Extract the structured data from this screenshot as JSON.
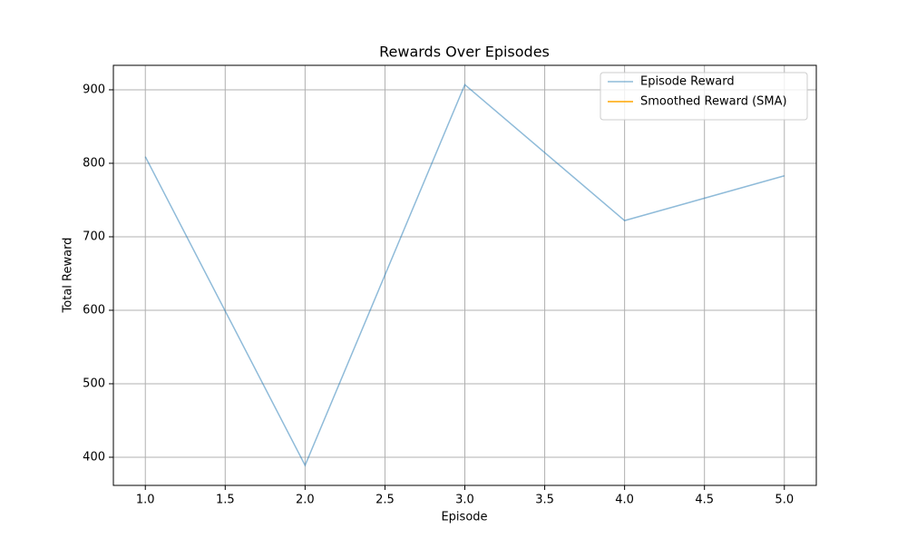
{
  "chart_data": {
    "type": "line",
    "title": "Rewards Over Episodes",
    "xlabel": "Episode",
    "ylabel": "Total Reward",
    "x": [
      1,
      2,
      3,
      4,
      5
    ],
    "series": [
      {
        "name": "Episode Reward",
        "color": "#1f77b4",
        "alpha": 0.5,
        "values": [
          809,
          389,
          907,
          722,
          783
        ]
      },
      {
        "name": "Smoothed Reward (SMA)",
        "color": "#ffa500",
        "values": [
          null,
          null,
          null,
          null,
          null
        ]
      }
    ],
    "xlim": [
      0.8,
      5.2
    ],
    "xticks": [
      {
        "value": 1,
        "label": "1.0"
      },
      1.5,
      {
        "value": 2,
        "label": "2.0"
      },
      2.5,
      {
        "value": 3,
        "label": "3.0"
      },
      3.5,
      {
        "value": 4,
        "label": "4.0"
      },
      4.5,
      {
        "value": 5,
        "label": "5.0"
      }
    ],
    "ylim": [
      361.7,
      933.3
    ],
    "yticks": [
      400,
      500,
      600,
      700,
      800,
      900
    ],
    "grid": true,
    "legend": "upper right"
  }
}
